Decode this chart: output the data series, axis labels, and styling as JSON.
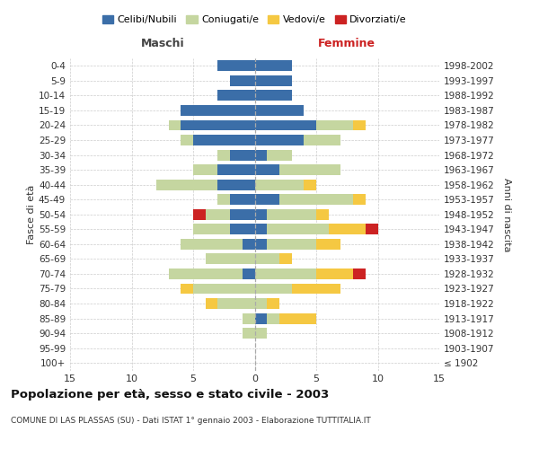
{
  "age_groups": [
    "100+",
    "95-99",
    "90-94",
    "85-89",
    "80-84",
    "75-79",
    "70-74",
    "65-69",
    "60-64",
    "55-59",
    "50-54",
    "45-49",
    "40-44",
    "35-39",
    "30-34",
    "25-29",
    "20-24",
    "15-19",
    "10-14",
    "5-9",
    "0-4"
  ],
  "birth_years": [
    "≤ 1902",
    "1903-1907",
    "1908-1912",
    "1913-1917",
    "1918-1922",
    "1923-1927",
    "1928-1932",
    "1933-1937",
    "1938-1942",
    "1943-1947",
    "1948-1952",
    "1953-1957",
    "1958-1962",
    "1963-1967",
    "1968-1972",
    "1973-1977",
    "1978-1982",
    "1983-1987",
    "1988-1992",
    "1993-1997",
    "1998-2002"
  ],
  "maschi": {
    "celibi": [
      0,
      0,
      0,
      0,
      0,
      0,
      1,
      0,
      1,
      2,
      2,
      2,
      3,
      3,
      2,
      5,
      6,
      6,
      3,
      2,
      3
    ],
    "coniugati": [
      0,
      0,
      1,
      1,
      3,
      5,
      6,
      4,
      5,
      3,
      2,
      1,
      5,
      2,
      1,
      1,
      1,
      0,
      0,
      0,
      0
    ],
    "vedovi": [
      0,
      0,
      0,
      0,
      1,
      1,
      0,
      0,
      0,
      0,
      0,
      0,
      0,
      0,
      0,
      0,
      0,
      0,
      0,
      0,
      0
    ],
    "divorziati": [
      0,
      0,
      0,
      0,
      0,
      0,
      0,
      0,
      0,
      0,
      1,
      0,
      0,
      0,
      0,
      0,
      0,
      0,
      0,
      0,
      0
    ]
  },
  "femmine": {
    "nubili": [
      0,
      0,
      0,
      1,
      0,
      0,
      0,
      0,
      1,
      1,
      1,
      2,
      0,
      2,
      1,
      4,
      5,
      4,
      3,
      3,
      3
    ],
    "coniugate": [
      0,
      0,
      1,
      1,
      1,
      3,
      5,
      2,
      4,
      5,
      4,
      6,
      4,
      5,
      2,
      3,
      3,
      0,
      0,
      0,
      0
    ],
    "vedove": [
      0,
      0,
      0,
      3,
      1,
      4,
      3,
      1,
      2,
      3,
      1,
      1,
      1,
      0,
      0,
      0,
      1,
      0,
      0,
      0,
      0
    ],
    "divorziate": [
      0,
      0,
      0,
      0,
      0,
      0,
      1,
      0,
      0,
      1,
      0,
      0,
      0,
      0,
      0,
      0,
      0,
      0,
      0,
      0,
      0
    ]
  },
  "colors": {
    "celibi": "#3b6ea8",
    "coniugati": "#c5d6a0",
    "vedovi": "#f5c842",
    "divorziati": "#cc2222"
  },
  "xlim": 15,
  "title": "Popolazione per età, sesso e stato civile - 2003",
  "subtitle": "COMUNE DI LAS PLASSAS (SU) - Dati ISTAT 1° gennaio 2003 - Elaborazione TUTTITALIA.IT",
  "ylabel_left": "Fasce di età",
  "ylabel_right": "Anni di nascita",
  "xlabel_maschi": "Maschi",
  "xlabel_femmine": "Femmine",
  "legend": [
    "Celibi/Nubili",
    "Coniugati/e",
    "Vedovi/e",
    "Divorziati/e"
  ],
  "bg_color": "#ffffff",
  "grid_color": "#cccccc"
}
